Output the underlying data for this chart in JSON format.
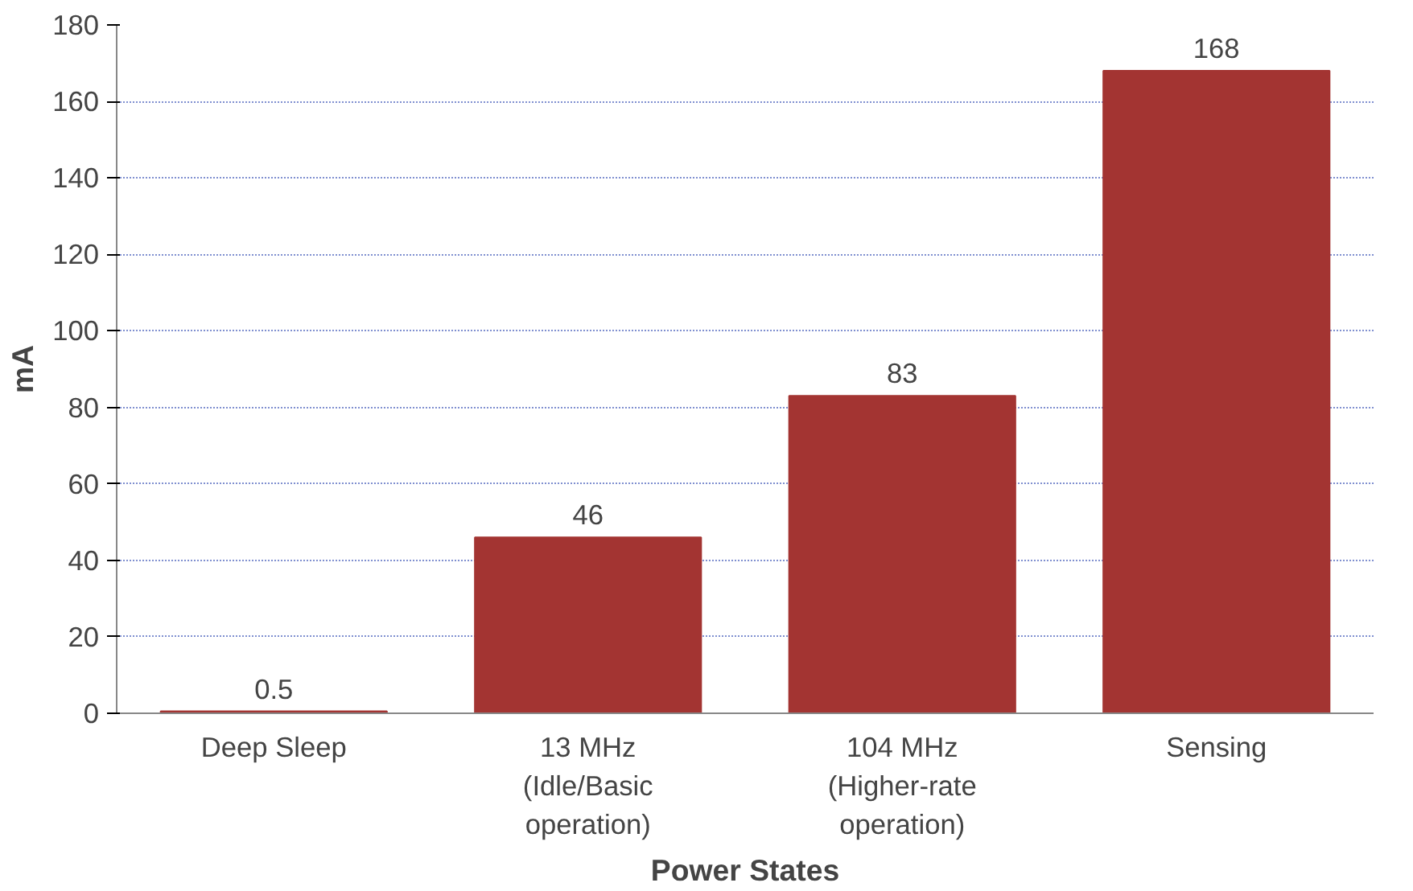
{
  "chart_data": {
    "type": "bar",
    "xlabel": "Power States",
    "ylabel": "mA",
    "categories": [
      "Deep Sleep",
      "13 MHz\n(Idle/Basic\noperation)",
      "104 MHz\n(Higher-rate\noperation)",
      "Sensing"
    ],
    "values": [
      0.5,
      46,
      83,
      168
    ],
    "color": "#a33432",
    "data_labels": true,
    "ylim": [
      0,
      180
    ],
    "yticks": [
      0,
      20,
      40,
      60,
      80,
      100,
      120,
      140,
      160,
      180
    ],
    "grid": "y"
  }
}
